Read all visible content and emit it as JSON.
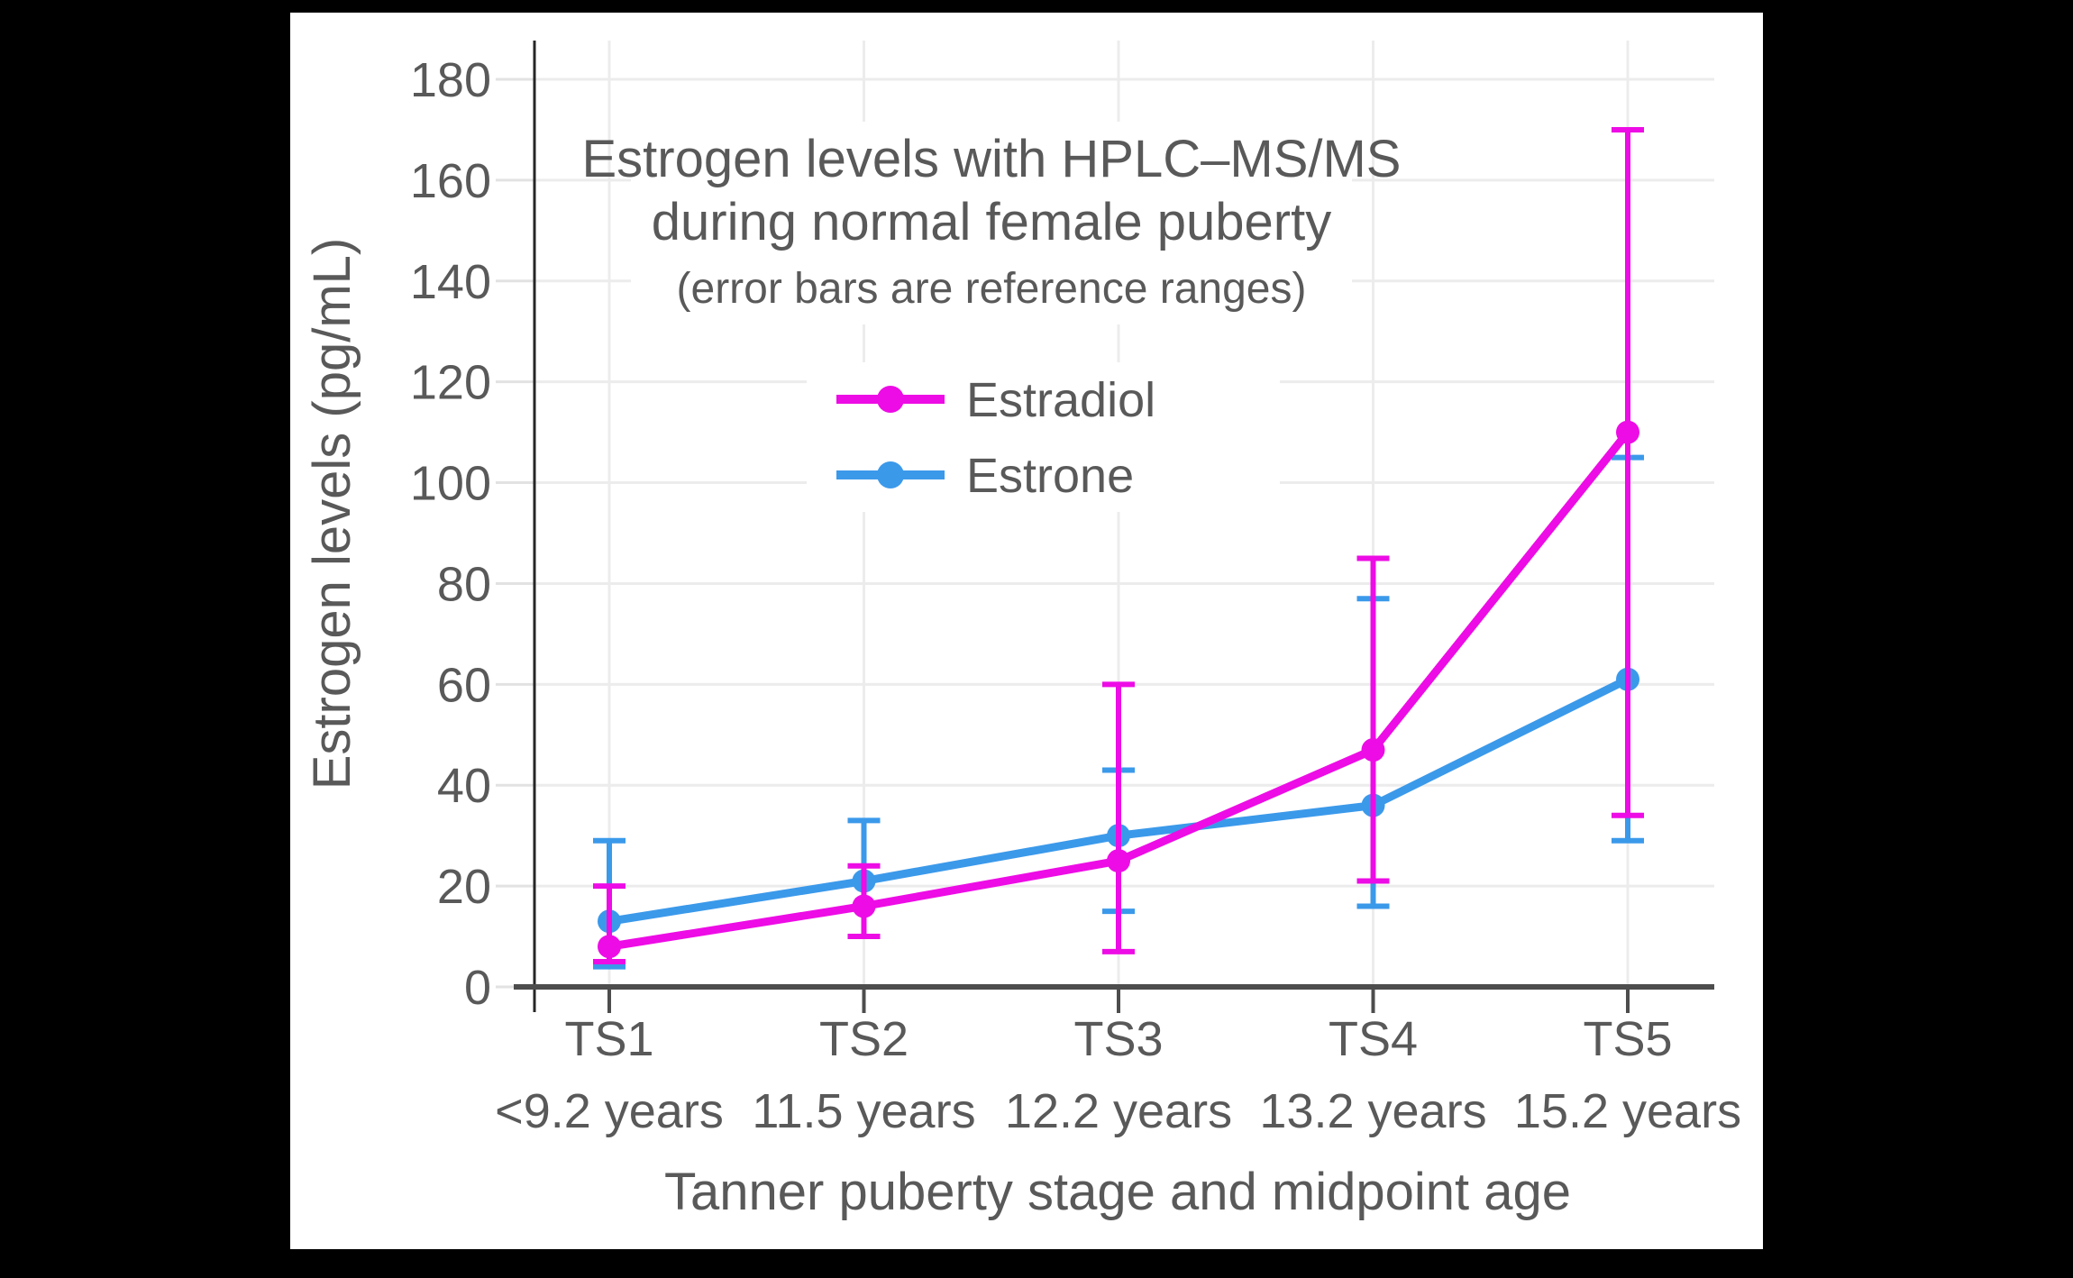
{
  "frame": {
    "page_background": "#000000",
    "panel_background": "#ffffff"
  },
  "title": {
    "line1": "Estrogen levels with HPLC–MS/MS",
    "line2": "during normal female puberty",
    "subtitle": "(error bars are reference ranges)"
  },
  "axes": {
    "y_label": "Estrogen levels (pg/mL)",
    "x_label": "Tanner puberty stage and midpoint age"
  },
  "colors": {
    "estradiol": "#ED0CE5",
    "estrone": "#3B99EA",
    "grid": "#ececec",
    "y_tick": "#e2e2e2",
    "x_axis": "#4d4d4d",
    "y_spine": "#262626",
    "x_tick": "#4d4d4d",
    "text": "#595959"
  },
  "chart_data": {
    "type": "line",
    "title": "Estrogen levels with HPLC–MS/MS during normal female puberty",
    "subtitle": "(error bars are reference ranges)",
    "xlabel": "Tanner puberty stage and midpoint age",
    "ylabel": "Estrogen levels (pg/mL)",
    "ylim": [
      0,
      188
    ],
    "y_ticks": [
      0,
      20,
      40,
      60,
      80,
      100,
      120,
      140,
      160,
      180
    ],
    "grid": true,
    "legend_position": "upper-center-inside",
    "categories": [
      "TS1",
      "TS2",
      "TS3",
      "TS4",
      "TS5"
    ],
    "category_ages": [
      "<9.2 years",
      "11.5 years",
      "12.2 years",
      "13.2 years",
      "15.2 years"
    ],
    "error_bar_meaning": "reference ranges",
    "series": [
      {
        "name": "Estrone",
        "color": "#3B99EA",
        "values": [
          13,
          21,
          30,
          36,
          61
        ],
        "error_low": [
          4,
          10,
          15,
          16,
          29
        ],
        "error_high": [
          29,
          33,
          43,
          77,
          105
        ]
      },
      {
        "name": "Estradiol",
        "color": "#ED0CE5",
        "values": [
          8,
          16,
          25,
          47,
          110
        ],
        "error_low": [
          5,
          10,
          7,
          21,
          34
        ],
        "error_high": [
          20,
          24,
          60,
          85,
          170
        ]
      }
    ]
  },
  "legend_order": [
    "Estradiol",
    "Estrone"
  ]
}
